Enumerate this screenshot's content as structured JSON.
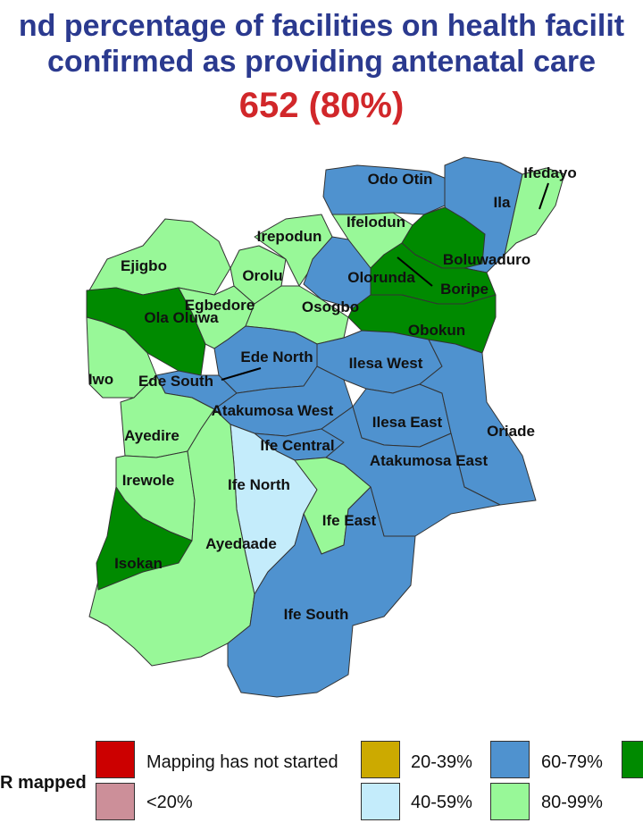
{
  "title_line1": "nd percentage of facilities on health facilit",
  "title_line2": "confirmed as providing antenatal care",
  "headline": "652 (80%)",
  "colors": {
    "not_started": "#cc0000",
    "lt20": "#cc8f99",
    "r20_39": "#ccaa00",
    "r40_59": "#c4ecfb",
    "r60_79": "#4f92cf",
    "r80_99": "#98f898",
    "r100": "#008a00"
  },
  "legend": {
    "title": "R mapped",
    "items": [
      {
        "label": "Mapping has not started",
        "color": "#cc0000"
      },
      {
        "label": "<20%",
        "color": "#cc8f99"
      },
      {
        "label": "20-39%",
        "color": "#ccaa00"
      },
      {
        "label": "40-59%",
        "color": "#c4ecfb"
      },
      {
        "label": "60-79%",
        "color": "#4f92cf"
      },
      {
        "label": "80-99%",
        "color": "#98f898"
      },
      {
        "label": "",
        "color": "#008a00"
      }
    ]
  },
  "regions": [
    {
      "name": "Odo Otin",
      "color": "#4f92cf"
    },
    {
      "name": "Ifedayo",
      "color": "#98f898"
    },
    {
      "name": "Ila",
      "color": "#4f92cf"
    },
    {
      "name": "Ifelodun",
      "color": "#98f898"
    },
    {
      "name": "Irepodun",
      "color": "#98f898"
    },
    {
      "name": "Boluwaduro",
      "color": "#008a00"
    },
    {
      "name": "Ejigbo",
      "color": "#98f898"
    },
    {
      "name": "Orolu",
      "color": "#98f898"
    },
    {
      "name": "Olorunda",
      "color": "#4f92cf"
    },
    {
      "name": "Boripe",
      "color": "#008a00"
    },
    {
      "name": "Egbedore",
      "color": "#98f898"
    },
    {
      "name": "Osogbo",
      "color": "#98f898"
    },
    {
      "name": "Ola Oluwa",
      "color": "#008a00"
    },
    {
      "name": "Obokun",
      "color": "#008a00"
    },
    {
      "name": "Ede North",
      "color": "#4f92cf"
    },
    {
      "name": "Iwo",
      "color": "#98f898"
    },
    {
      "name": "Ede South",
      "color": "#4f92cf"
    },
    {
      "name": "Ilesa West",
      "color": "#4f92cf"
    },
    {
      "name": "Atakumosa West",
      "color": "#4f92cf"
    },
    {
      "name": "Ilesa East",
      "color": "#4f92cf"
    },
    {
      "name": "Ayedire",
      "color": "#98f898"
    },
    {
      "name": "Oriade",
      "color": "#4f92cf"
    },
    {
      "name": "Ife Central",
      "color": "#4f92cf"
    },
    {
      "name": "Atakumosa East",
      "color": "#4f92cf"
    },
    {
      "name": "Irewole",
      "color": "#98f898"
    },
    {
      "name": "Ife North",
      "color": "#c4ecfb"
    },
    {
      "name": "Ife East",
      "color": "#98f898"
    },
    {
      "name": "Ayedaade",
      "color": "#98f898"
    },
    {
      "name": "Isokan",
      "color": "#008a00"
    },
    {
      "name": "Ife South",
      "color": "#4f92cf"
    }
  ]
}
